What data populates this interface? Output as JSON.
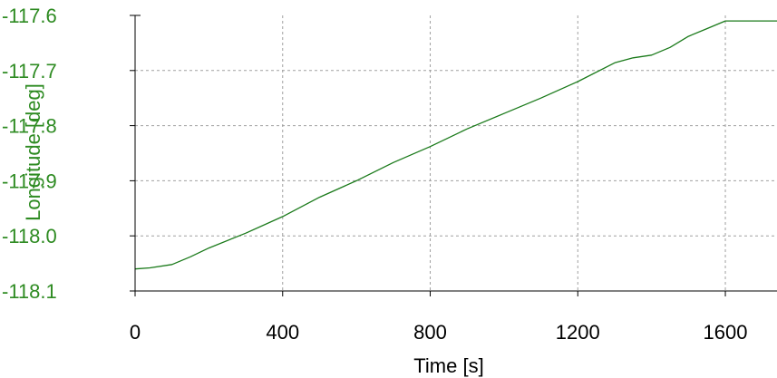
{
  "chart_data": {
    "type": "line",
    "xlabel": "Time [s]",
    "ylabel": "Longitude [deg]",
    "xlim": [
      0,
      1740
    ],
    "ylim": [
      -118.1,
      -117.6
    ],
    "x_ticks": [
      0,
      400,
      800,
      1200,
      1600
    ],
    "x_tick_labels": [
      "0",
      "400",
      "800",
      "1200",
      "1600"
    ],
    "y_ticks": [
      -117.6,
      -117.7,
      -117.8,
      -117.9,
      -118.0,
      -118.1
    ],
    "y_tick_labels": [
      "-117.6",
      "-117.7",
      "-117.8",
      "-117.9",
      "-118.0",
      "-118.1"
    ],
    "grid": true,
    "colors": {
      "series": "#1a7a1a",
      "ylabel_text": "#2e8b22",
      "axis": "#000000",
      "grid": "#a0a0a0"
    },
    "series": [
      {
        "x": [
          0,
          40,
          100,
          150,
          200,
          300,
          400,
          500,
          600,
          700,
          800,
          900,
          1000,
          1100,
          1200,
          1300,
          1350,
          1400,
          1450,
          1500,
          1550,
          1600,
          1650,
          1740
        ],
        "y": [
          -118.06,
          -118.058,
          -118.052,
          -118.038,
          -118.022,
          -117.995,
          -117.965,
          -117.93,
          -117.9,
          -117.867,
          -117.838,
          -117.806,
          -117.778,
          -117.75,
          -117.72,
          -117.686,
          -117.677,
          -117.672,
          -117.658,
          -117.638,
          -117.624,
          -117.61,
          -117.61,
          -117.61
        ]
      }
    ]
  }
}
